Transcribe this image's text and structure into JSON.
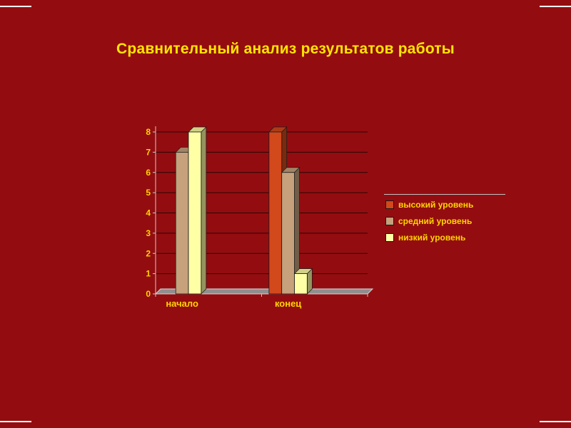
{
  "slide": {
    "title": "Сравнительный анализ результатов работы",
    "background_color": "#930d10",
    "title_color": "#ffe500"
  },
  "chart_data": {
    "type": "bar",
    "title": "",
    "xlabel": "",
    "ylabel": "",
    "categories": [
      "начало",
      "конец"
    ],
    "series": [
      {
        "name": "высокий уровень",
        "color": "#d2491c",
        "values": [
          0,
          8
        ]
      },
      {
        "name": "средний уровень",
        "color": "#c6a17c",
        "values": [
          7,
          6
        ]
      },
      {
        "name": "низкий уровень",
        "color": "#ffffa6",
        "values": [
          8,
          1
        ]
      }
    ],
    "ylim": [
      0,
      8
    ],
    "ytick_step": 1,
    "grid": true,
    "grid_color": "#2b0404",
    "axis_line_color": "#c9c9c9",
    "floor_color": "#8f8f8f",
    "text_color": "#ffd400",
    "legend_position": "right",
    "style": "3d-column"
  }
}
